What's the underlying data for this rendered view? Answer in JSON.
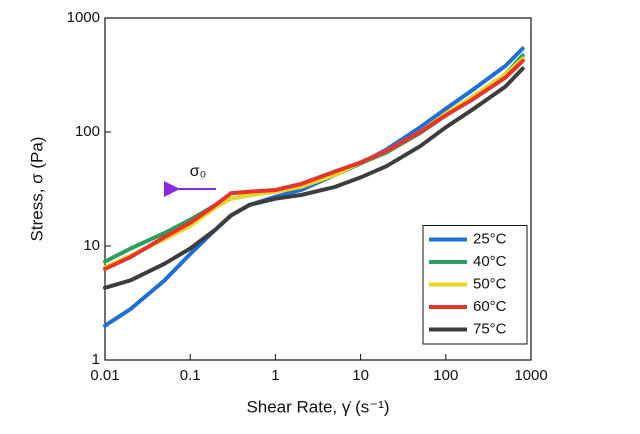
{
  "chart_data": {
    "type": "line",
    "xlabel": "Shear Rate, γ̇ (s⁻¹)",
    "ylabel": "Stress, σ (Pa)",
    "annotation": "σ₀",
    "annotation_color": "#8a2be2",
    "xscale": "log",
    "yscale": "log",
    "xlim": [
      0.01,
      1000
    ],
    "ylim": [
      1,
      1000
    ],
    "xticks": [
      0.01,
      0.1,
      1,
      10,
      100,
      1000
    ],
    "yticks": [
      1,
      10,
      100,
      1000
    ],
    "legend": "lower right",
    "x": [
      0.01,
      0.02,
      0.05,
      0.1,
      0.2,
      0.3,
      0.5,
      1,
      2,
      5,
      10,
      20,
      50,
      100,
      200,
      500,
      800
    ],
    "series": [
      {
        "name": "25°C",
        "color": "#1f6fd6",
        "values": [
          2,
          2.8,
          5,
          8.5,
          14,
          18.5,
          23,
          27,
          31,
          42,
          53,
          70,
          110,
          160,
          230,
          380,
          540
        ]
      },
      {
        "name": "40°C",
        "color": "#2aa060",
        "values": [
          7.3,
          9.5,
          13,
          17,
          23,
          26,
          28,
          30,
          33,
          42,
          53,
          66,
          98,
          140,
          200,
          320,
          470
        ]
      },
      {
        "name": "50°C",
        "color": "#e6d822",
        "values": [
          6.5,
          8.2,
          11.5,
          15,
          22,
          26,
          28,
          30,
          33,
          42,
          54,
          68,
          100,
          145,
          200,
          320,
          440
        ]
      },
      {
        "name": "60°C",
        "color": "#e8332b",
        "values": [
          6.3,
          8,
          12,
          16,
          23,
          29,
          30,
          31,
          35,
          45,
          54,
          68,
          100,
          140,
          190,
          300,
          420
        ]
      },
      {
        "name": "75°C",
        "color": "#3d3d3d",
        "values": [
          4.3,
          5,
          7,
          9.5,
          14,
          18.5,
          23,
          26,
          28,
          33,
          40,
          50,
          75,
          110,
          155,
          250,
          360
        ]
      }
    ]
  }
}
